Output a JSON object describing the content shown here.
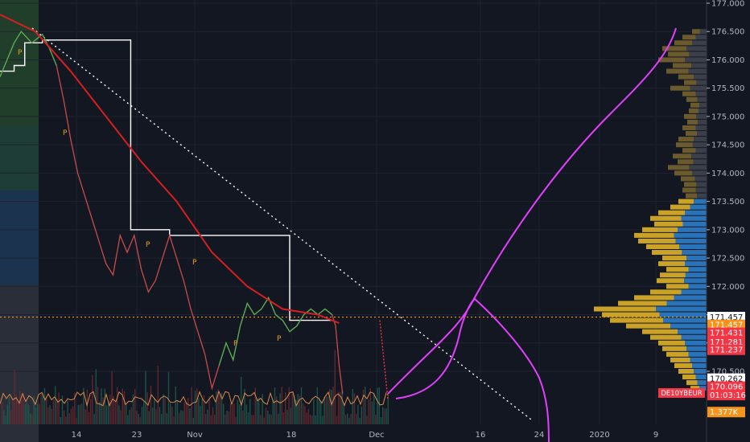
{
  "chart_data": {
    "type": "line",
    "instrument_label": "DE10YBEUR",
    "x_ticks": [
      "14",
      "23",
      "Nov",
      "18",
      "Dec",
      "16",
      "24",
      "2020",
      "9"
    ],
    "y_ticks": [
      177.0,
      176.5,
      176.0,
      175.5,
      175.0,
      174.5,
      174.0,
      173.5,
      173.0,
      172.5,
      172.0,
      171.5,
      171.0,
      170.5
    ],
    "y_tick_labels": [
      "177.000",
      "176.500",
      "176.000",
      "175.500",
      "175.000",
      "174.500",
      "174.000",
      "173.500",
      "173.000",
      "172.500",
      "172.000",
      "171.500",
      "171.000",
      "170.500"
    ],
    "ylim": [
      169.5,
      177.0
    ],
    "price_tags": [
      {
        "label": "171.457",
        "value": 171.457,
        "color": "#ffffff",
        "text": "dark"
      },
      {
        "label": "171.457",
        "value": 171.32,
        "color": "#f7931a",
        "text": "light"
      },
      {
        "label": "171.431",
        "value": 171.18,
        "color": "#f23645",
        "text": "light"
      },
      {
        "label": "171.281",
        "value": 171.02,
        "color": "#f23645",
        "text": "light"
      },
      {
        "label": "171.237",
        "value": 170.88,
        "color": "#f23645",
        "text": "light"
      },
      {
        "label": "170.262",
        "value": 170.37,
        "color": "#ffffff",
        "text": "dark"
      },
      {
        "label": "170.096",
        "value": 170.23,
        "color": "#f23645",
        "text": "light"
      },
      {
        "label": "01:03:16",
        "value": 170.08,
        "color": "#f23645",
        "text": "light"
      },
      {
        "label": "1.377K",
        "value": 169.78,
        "color": "#f7931a",
        "text": "light"
      }
    ],
    "price_series": {
      "name": "",
      "x": [
        0,
        0.01,
        0.02,
        0.03,
        0.045,
        0.06,
        0.07,
        0.08,
        0.09,
        0.1,
        0.11,
        0.12,
        0.13,
        0.14,
        0.15,
        0.16,
        0.17,
        0.18,
        0.19,
        0.2,
        0.21,
        0.22,
        0.23,
        0.24,
        0.25,
        0.26,
        0.27,
        0.28,
        0.29,
        0.3,
        0.31,
        0.32,
        0.33,
        0.34,
        0.35,
        0.36,
        0.37,
        0.38,
        0.39,
        0.4,
        0.41,
        0.42,
        0.43,
        0.44,
        0.45,
        0.46,
        0.47,
        0.475,
        0.48,
        0.485
      ],
      "values": [
        175.7,
        176.0,
        176.3,
        176.5,
        176.3,
        176.45,
        176.2,
        175.9,
        175.3,
        174.6,
        174.0,
        173.6,
        173.2,
        172.8,
        172.4,
        172.2,
        172.9,
        172.6,
        172.9,
        172.3,
        171.9,
        172.1,
        172.5,
        172.9,
        172.5,
        172.1,
        171.6,
        171.2,
        170.8,
        170.2,
        170.6,
        171.0,
        170.7,
        171.3,
        171.7,
        171.5,
        171.6,
        171.8,
        171.5,
        171.4,
        171.2,
        171.3,
        171.5,
        171.6,
        171.5,
        171.6,
        171.5,
        171.3,
        170.6,
        170.1
      ]
    },
    "ma_red": {
      "x": [
        0,
        0.05,
        0.1,
        0.15,
        0.2,
        0.25,
        0.3,
        0.35,
        0.4,
        0.45,
        0.48
      ],
      "values": [
        176.8,
        176.5,
        175.8,
        175.0,
        174.2,
        173.5,
        172.6,
        172.0,
        171.6,
        171.5,
        171.35
      ]
    },
    "vwap_white_step": {
      "x": [
        0,
        0.02,
        0.02,
        0.035,
        0.035,
        0.06,
        0.06,
        0.185,
        0.185,
        0.24,
        0.24,
        0.41,
        0.41,
        0.47
      ],
      "values": [
        175.8,
        175.8,
        175.9,
        175.9,
        176.3,
        176.3,
        176.35,
        176.35,
        173.0,
        173.0,
        172.9,
        172.9,
        171.4,
        171.4
      ]
    },
    "volume_profile_levels": [
      176.5,
      176.4,
      176.3,
      176.2,
      176.1,
      176.0,
      175.9,
      175.8,
      175.7,
      175.6,
      175.5,
      175.4,
      175.3,
      175.2,
      175.1,
      175.0,
      174.9,
      174.8,
      174.7,
      174.6,
      174.5,
      174.4,
      174.3,
      174.2,
      174.1,
      174.0,
      173.9,
      173.8,
      173.7,
      173.6,
      173.5,
      173.4,
      173.3,
      173.2,
      173.1,
      173.0,
      172.9,
      172.8,
      172.7,
      172.6,
      172.5,
      172.4,
      172.3,
      172.2,
      172.1,
      172.0,
      171.9,
      171.8,
      171.7,
      171.6,
      171.5,
      171.4,
      171.3,
      171.2,
      171.1,
      171.0,
      170.9,
      170.8,
      170.7,
      170.6,
      170.5,
      170.4,
      170.3,
      170.2
    ],
    "volume_profile_values": [
      18,
      30,
      40,
      55,
      48,
      60,
      42,
      50,
      35,
      28,
      45,
      30,
      25,
      20,
      22,
      28,
      24,
      30,
      26,
      35,
      38,
      30,
      42,
      36,
      48,
      40,
      32,
      28,
      30,
      26,
      35,
      45,
      60,
      70,
      65,
      80,
      90,
      85,
      75,
      68,
      55,
      60,
      50,
      58,
      62,
      50,
      70,
      90,
      110,
      140,
      130,
      120,
      100,
      80,
      70,
      60,
      55,
      50,
      45,
      40,
      35,
      30,
      25,
      20
    ],
    "current_price": 171.457
  }
}
